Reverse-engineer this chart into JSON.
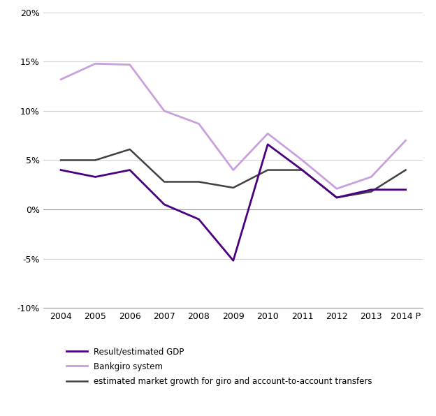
{
  "years": [
    2004,
    2005,
    2006,
    2007,
    2008,
    2009,
    2010,
    2011,
    2012,
    2013,
    2014
  ],
  "gdp_vals": [
    0.04,
    0.033,
    0.04,
    0.005,
    -0.01,
    -0.052,
    0.066,
    0.04,
    0.012,
    0.02,
    0.02
  ],
  "bankgiro_vals": [
    0.132,
    0.148,
    0.147,
    0.1,
    0.087,
    0.04,
    0.077,
    0.05,
    0.021,
    0.033,
    0.07
  ],
  "market_vals": [
    0.05,
    0.05,
    0.061,
    0.028,
    0.028,
    0.022,
    0.04,
    0.04,
    0.012,
    0.018,
    0.04
  ],
  "color_gdp": "#4B0082",
  "color_bankgiro": "#C9A0DC",
  "color_market": "#404040",
  "ylim_min": -0.1,
  "ylim_max": 0.2,
  "yticks": [
    -0.1,
    -0.05,
    0.0,
    0.05,
    0.1,
    0.15,
    0.2
  ],
  "legend_gdp": "Result/estimated GDP",
  "legend_bankgiro": "Bankgiro system",
  "legend_market": "estimated market growth for giro and account-to-account transfers",
  "x_labels": [
    "2004",
    "2005",
    "2006",
    "2007",
    "2008",
    "2009",
    "2010",
    "2011",
    "2012",
    "2013",
    "2014 P"
  ],
  "grid_color": "#d0d0d0",
  "spine_color": "#999999"
}
